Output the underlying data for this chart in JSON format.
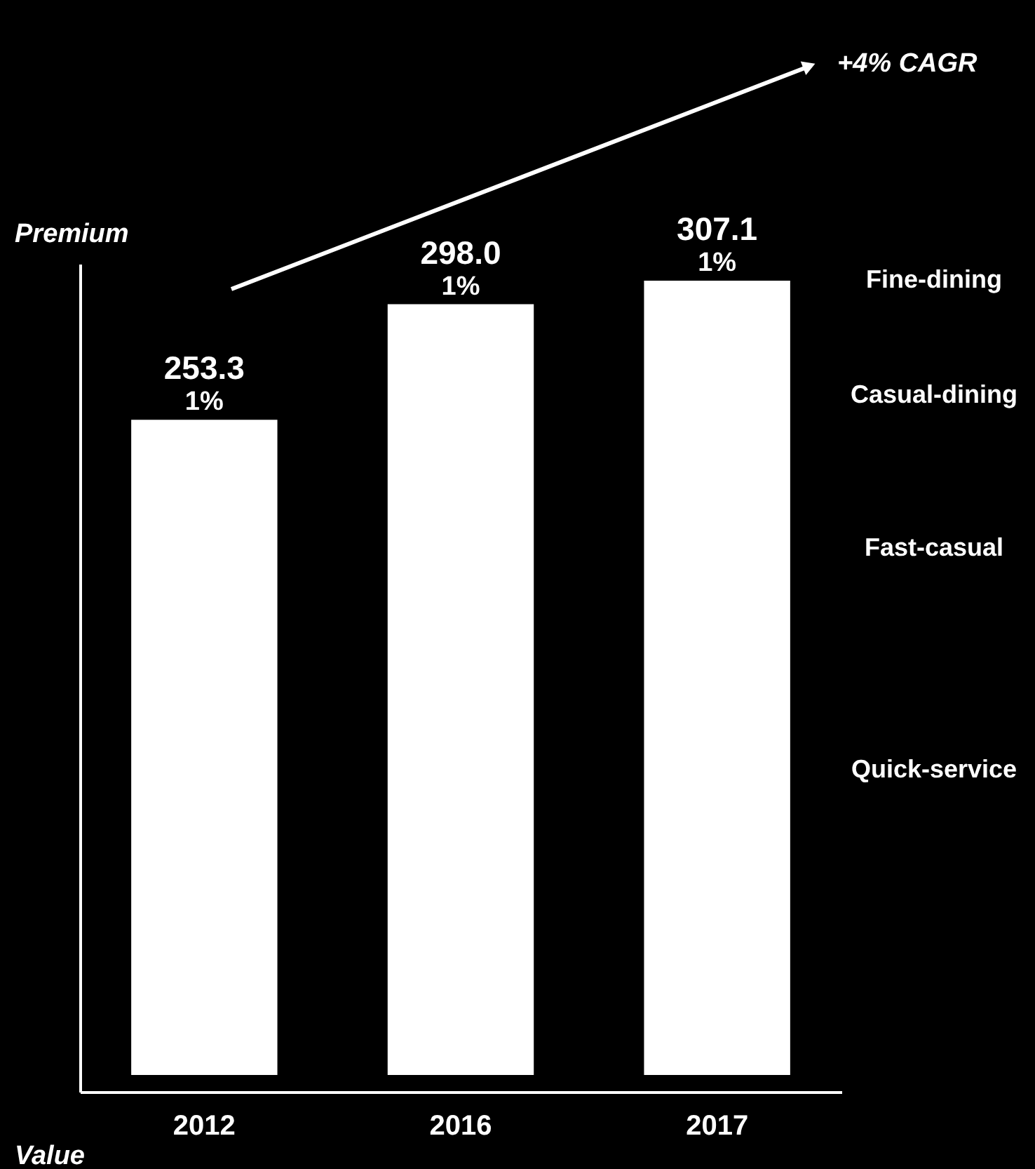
{
  "chart_data": {
    "type": "bar",
    "categories": [
      "2012",
      "2016",
      "2017"
    ],
    "values": [
      253.3,
      298.0,
      307.1
    ],
    "color": "#ffffff",
    "value_labels": [
      "253.3",
      "298.0",
      "307.1"
    ],
    "xlabel": "Value",
    "ylabel": "Premium",
    "annotations": [
      "+4% CAGR",
      "Fine-dining",
      "Casual-dining",
      "Fast-casual",
      "Quick-service",
      {
        "text": "1%",
        "x": "2012",
        "y": 253.3
      },
      {
        "text": "1%",
        "x": "2016",
        "y": 298.0
      },
      {
        "text": "1%",
        "x": "2017",
        "y": 307.1
      }
    ]
  }
}
